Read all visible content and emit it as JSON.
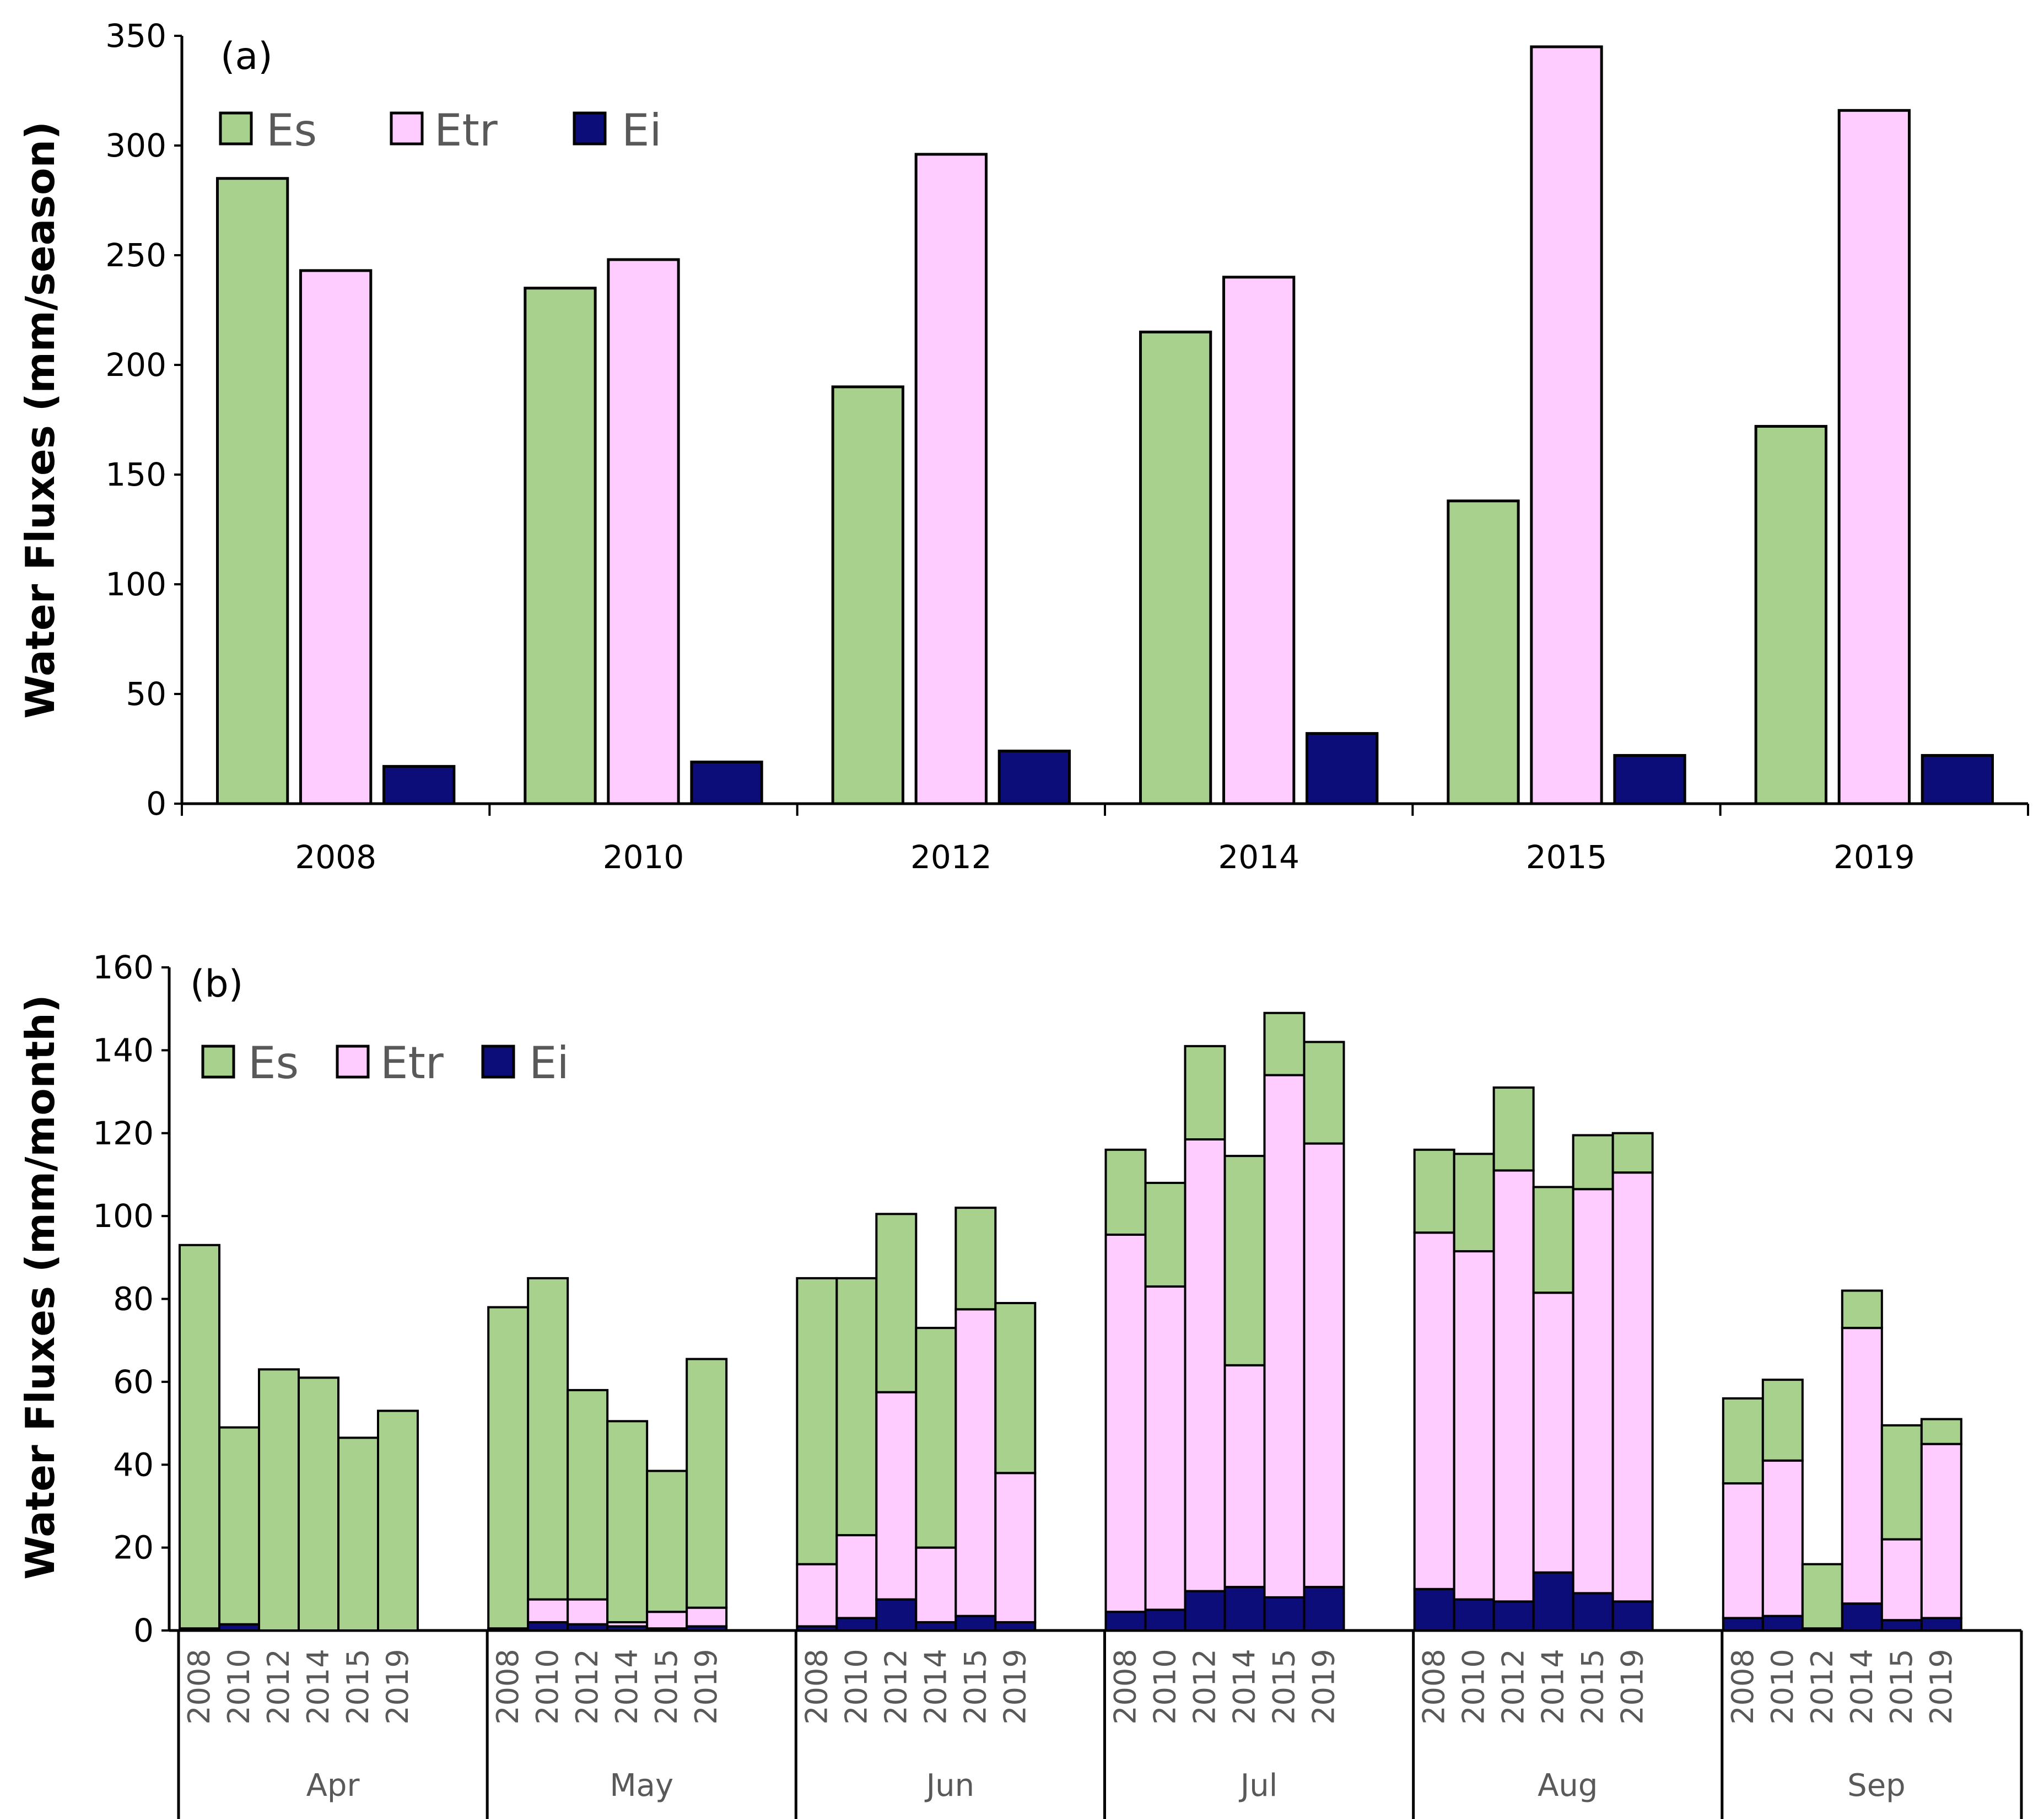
{
  "chart_data": [
    {
      "type": "bar",
      "panel_label": "(a)",
      "categories": [
        "2008",
        "2010",
        "2012",
        "2014",
        "2015",
        "2019"
      ],
      "series": [
        {
          "name": "Es",
          "color": "#a9d18e",
          "values": [
            285,
            235,
            190,
            215,
            138,
            172
          ]
        },
        {
          "name": "Etr",
          "color": "#ffccff",
          "values": [
            243,
            248,
            296,
            240,
            345,
            316
          ]
        },
        {
          "name": "Ei",
          "color": "#0d0d7a",
          "values": [
            17,
            19,
            24,
            32,
            22,
            22
          ]
        }
      ],
      "ylabel": "Water Fluxes (mm/season)",
      "ylim": [
        0,
        350
      ],
      "yticks": [
        "0",
        "50",
        "100",
        "150",
        "200",
        "250",
        "300",
        "350"
      ],
      "grid": false,
      "legend": "top-left"
    },
    {
      "type": "stacked-bar",
      "panel_label": "(b)",
      "groups": [
        "Apr",
        "May",
        "Jun",
        "Jul",
        "Aug",
        "Sep"
      ],
      "years": [
        "2008",
        "2010",
        "2012",
        "2014",
        "2015",
        "2019"
      ],
      "series": [
        {
          "name": "Es",
          "color": "#a9d18e"
        },
        {
          "name": "Etr",
          "color": "#ffccff"
        },
        {
          "name": "Ei",
          "color": "#0d0d7a"
        }
      ],
      "values": {
        "Apr": {
          "Ei": [
            0.5,
            1.5,
            0,
            0,
            0,
            0
          ],
          "Etr": [
            0,
            0,
            0,
            0,
            0,
            0
          ],
          "Es": [
            92.5,
            47.5,
            63,
            61,
            46.5,
            53
          ]
        },
        "May": {
          "Ei": [
            0.5,
            2,
            1.5,
            1,
            0.5,
            1
          ],
          "Etr": [
            0,
            5.5,
            6,
            1,
            4,
            4.5
          ],
          "Es": [
            77.5,
            77.5,
            50.5,
            48.5,
            34,
            60
          ]
        },
        "Jun": {
          "Ei": [
            1,
            3,
            7.5,
            2,
            3.5,
            2
          ],
          "Etr": [
            15,
            20,
            50,
            18,
            74,
            36
          ],
          "Es": [
            69,
            62,
            43,
            53,
            24.5,
            41
          ]
        },
        "Jul": {
          "Ei": [
            4.5,
            5,
            9.5,
            10.5,
            8,
            10.5
          ],
          "Etr": [
            91,
            78,
            109,
            53.5,
            126,
            107
          ],
          "Es": [
            20.5,
            25,
            22.5,
            50.5,
            15,
            24.5
          ]
        },
        "Aug": {
          "Ei": [
            10,
            7.5,
            7,
            14,
            9,
            7
          ],
          "Etr": [
            86,
            84,
            104,
            67.5,
            97.5,
            103.5
          ],
          "Es": [
            20,
            23.5,
            20,
            25.5,
            13,
            9.5
          ]
        },
        "Sep": {
          "Ei": [
            3,
            3.5,
            0.5,
            6.5,
            2.5,
            3
          ],
          "Etr": [
            32.5,
            37.5,
            0,
            66.5,
            19.5,
            42
          ],
          "Es": [
            20.5,
            19.5,
            15.5,
            9,
            27.5,
            6
          ]
        }
      },
      "ylabel": "Water Fluxes (mm/month)",
      "ylim": [
        0,
        160
      ],
      "yticks": [
        "0",
        "20",
        "40",
        "60",
        "80",
        "100",
        "120",
        "140",
        "160"
      ],
      "grid": false,
      "legend": "top-left"
    }
  ]
}
